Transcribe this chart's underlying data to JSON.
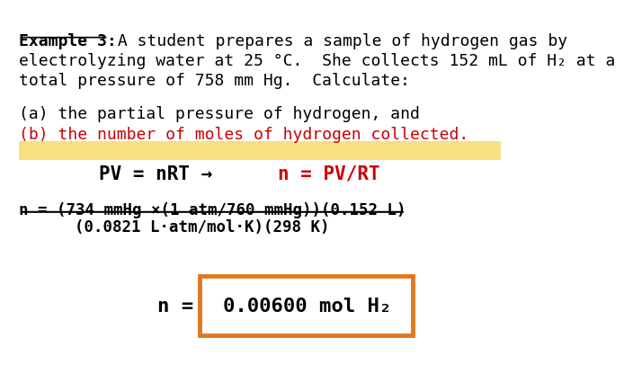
{
  "bg_color": "#ffffff",
  "highlight_color": "#f5c518",
  "highlight_alpha": 0.55,
  "box_color": "#e07820",
  "black": "#000000",
  "red": "#cc0000",
  "title_bold_underline": "Example 3:",
  "title_rest": " A student prepares a sample of hydrogen gas by",
  "line2": "electrolyzing water at 25 °C.  She collects 152 mL of H₂ at a",
  "line3": "total pressure of 758 mm Hg.  Calculate:",
  "part_a": "(a) the partial pressure of hydrogen, and",
  "part_b": "(b) the number of moles of hydrogen collected.",
  "equation1_black": "PV = nRT → ",
  "equation1_red": "n = PV/RT",
  "numerator": "n = (734 mmHg ×(1 atm/760 mmHg))(0.152 L)",
  "denominator": "(0.0821 L·atm/mol·K)(298 K)",
  "answer_prefix": "n = ",
  "answer": "0.00600 mol H₂",
  "font_family": "monospace"
}
